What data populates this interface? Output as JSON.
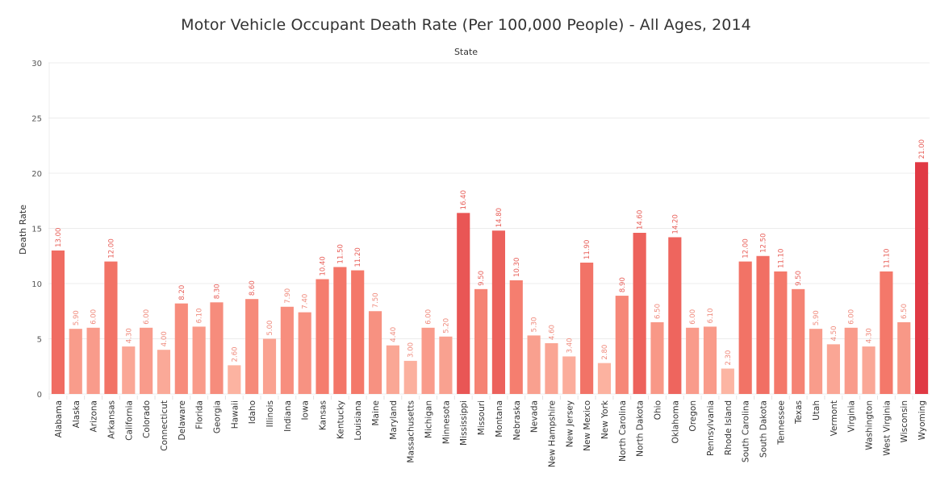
{
  "chart_data": {
    "type": "bar",
    "title": "Motor Vehicle Occupant Death Rate (Per 100,000 People) - All Ages, 2014",
    "subtitle": "State",
    "xlabel": "",
    "ylabel": "Death Rate",
    "ylim": [
      0,
      30
    ],
    "yticks": [
      0,
      5,
      10,
      15,
      20,
      25,
      30
    ],
    "grid": true,
    "value_label_format": "2 decimals",
    "color_scale": {
      "low": "#fcb5a3",
      "mid": "#f4796a",
      "high": "#e03944"
    },
    "categories": [
      "Alabama",
      "Alaska",
      "Arizona",
      "Arkansas",
      "California",
      "Colorado",
      "Connecticut",
      "Delaware",
      "Florida",
      "Georgia",
      "Hawaii",
      "Idaho",
      "Illinois",
      "Indiana",
      "Iowa",
      "Kansas",
      "Kentucky",
      "Louisiana",
      "Maine",
      "Maryland",
      "Massachusetts",
      "Michigan",
      "Minnesota",
      "Mississippi",
      "Missouri",
      "Montana",
      "Nebraska",
      "Nevada",
      "New Hampshire",
      "New Jersey",
      "New Mexico",
      "New York",
      "North Carolina",
      "North Dakota",
      "Ohio",
      "Oklahoma",
      "Oregon",
      "Pennsylvania",
      "Rhode Island",
      "South Carolina",
      "South Dakota",
      "Tennessee",
      "Texas",
      "Utah",
      "Vermont",
      "Virginia",
      "Washington",
      "West Virginia",
      "Wisconsin",
      "Wyoming"
    ],
    "values": [
      13.0,
      5.9,
      6.0,
      12.0,
      4.3,
      6.0,
      4.0,
      8.2,
      6.1,
      8.3,
      2.6,
      8.6,
      5.0,
      7.9,
      7.4,
      10.4,
      11.5,
      11.2,
      7.5,
      4.4,
      3.0,
      6.0,
      5.2,
      16.4,
      9.5,
      14.8,
      10.3,
      5.3,
      4.6,
      3.4,
      11.9,
      2.8,
      8.9,
      14.6,
      6.5,
      14.2,
      6.0,
      6.1,
      2.3,
      12.0,
      12.5,
      11.1,
      9.5,
      5.9,
      4.5,
      6.0,
      4.3,
      11.1,
      6.5,
      21.0
    ],
    "value_labels": [
      "13.00",
      "5.90",
      "6.00",
      "12.00",
      "4.30",
      "6.00",
      "4.00",
      "8.20",
      "6.10",
      "8.30",
      "2.60",
      "8.60",
      "5.00",
      "7.90",
      "7.40",
      "10.40",
      "11.50",
      "11.20",
      "7.50",
      "4.40",
      "3.00",
      "6.00",
      "5.20",
      "16.40",
      "9.50",
      "14.80",
      "10.30",
      "5.30",
      "4.60",
      "3.40",
      "11.90",
      "2.80",
      "8.90",
      "14.60",
      "6.50",
      "14.20",
      "6.00",
      "6.10",
      "2.30",
      "12.00",
      "12.50",
      "11.10",
      "9.50",
      "5.90",
      "4.50",
      "6.00",
      "4.30",
      "11.10",
      "6.50",
      "21.00"
    ]
  }
}
